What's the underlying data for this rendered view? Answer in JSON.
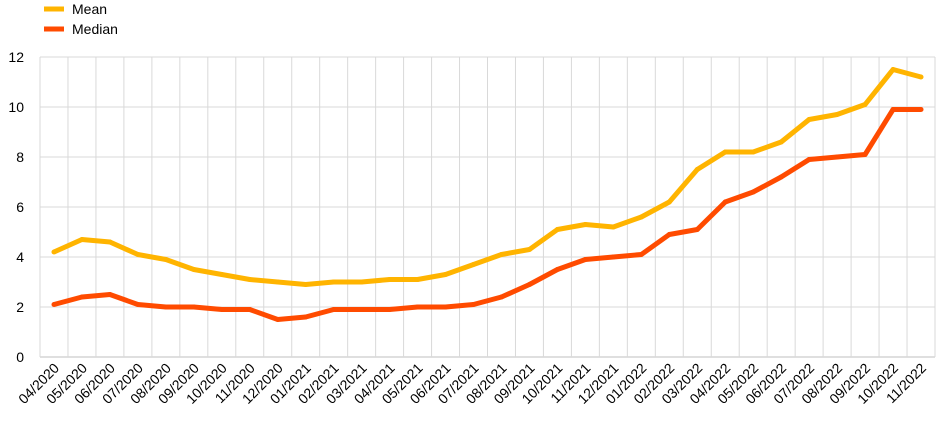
{
  "chart_data": {
    "type": "line",
    "categories": [
      "04/2020",
      "05/2020",
      "06/2020",
      "07/2020",
      "08/2020",
      "09/2020",
      "10/2020",
      "11/2020",
      "12/2020",
      "01/2021",
      "02/2021",
      "03/2021",
      "04/2021",
      "05/2021",
      "06/2021",
      "07/2021",
      "08/2021",
      "09/2021",
      "10/2021",
      "11/2021",
      "12/2021",
      "01/2022",
      "02/2022",
      "03/2022",
      "04/2022",
      "05/2022",
      "06/2022",
      "07/2022",
      "08/2022",
      "09/2022",
      "10/2022",
      "11/2022"
    ],
    "series": [
      {
        "name": "Mean",
        "color": "#FFB400",
        "values": [
          4.2,
          4.7,
          4.6,
          4.1,
          3.9,
          3.5,
          3.3,
          3.1,
          3.0,
          2.9,
          3.0,
          3.0,
          3.1,
          3.1,
          3.3,
          3.7,
          4.1,
          4.3,
          5.1,
          5.3,
          5.2,
          5.6,
          6.2,
          7.5,
          8.2,
          8.2,
          8.6,
          9.5,
          9.7,
          10.1,
          11.5,
          11.2
        ]
      },
      {
        "name": "Median",
        "color": "#FF4B00",
        "values": [
          2.1,
          2.4,
          2.5,
          2.1,
          2.0,
          2.0,
          1.9,
          1.9,
          1.5,
          1.6,
          1.9,
          1.9,
          1.9,
          2.0,
          2.0,
          2.1,
          2.4,
          2.9,
          3.5,
          3.9,
          4.0,
          4.1,
          4.9,
          5.1,
          6.2,
          6.6,
          7.2,
          7.9,
          8.0,
          8.1,
          9.9,
          9.9
        ]
      }
    ],
    "ylim": [
      0,
      12
    ],
    "yticks": [
      0,
      2,
      4,
      6,
      8,
      10,
      12
    ],
    "grid": true,
    "legend_position": "top-left",
    "title": "",
    "xlabel": "",
    "ylabel": ""
  }
}
